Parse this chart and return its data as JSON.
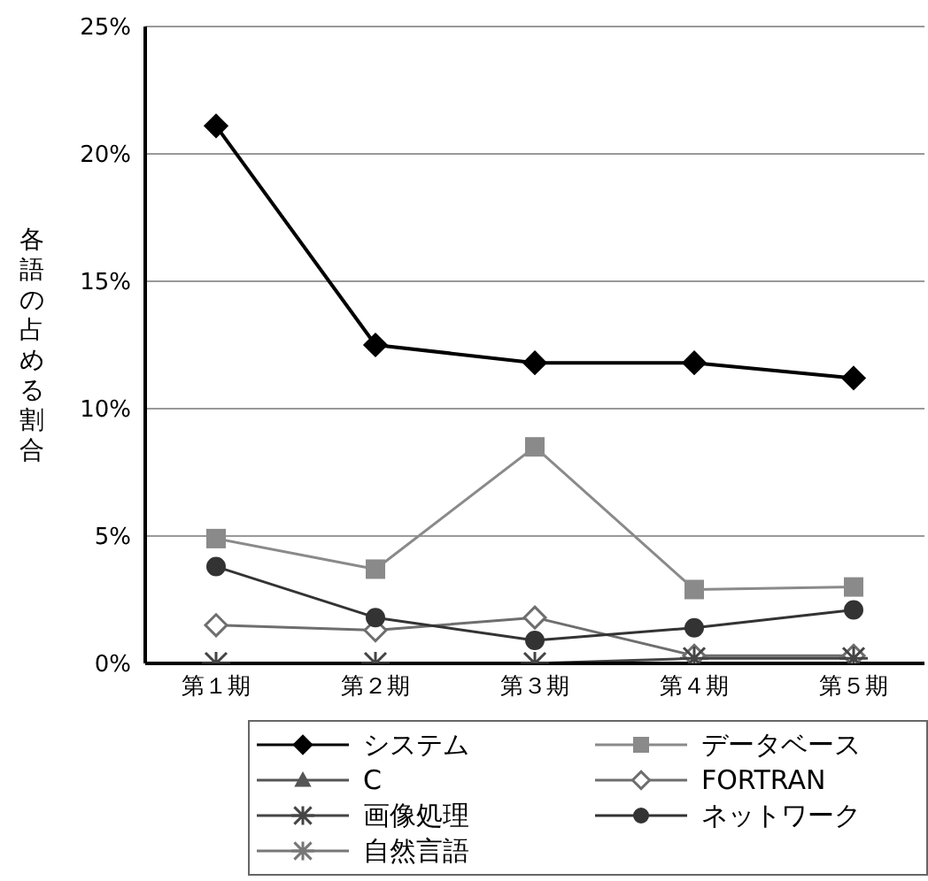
{
  "chart_data": {
    "type": "line",
    "ylabel": "各語の占める割合",
    "categories": [
      "第１期",
      "第２期",
      "第３期",
      "第４期",
      "第５期"
    ],
    "ylim": [
      0,
      25
    ],
    "yticks": [
      {
        "value": 0,
        "label": "0%"
      },
      {
        "value": 5,
        "label": "5%"
      },
      {
        "value": 10,
        "label": "10%"
      },
      {
        "value": 15,
        "label": "15%"
      },
      {
        "value": 20,
        "label": "20%"
      },
      {
        "value": 25,
        "label": "25%"
      }
    ],
    "grid": "y",
    "legend": "bottom",
    "series": [
      {
        "name": "システム",
        "color": "#000000",
        "marker": "diamond",
        "values": [
          21.1,
          12.5,
          11.8,
          11.8,
          11.2
        ]
      },
      {
        "name": "データベース",
        "color": "#8a8a8a",
        "marker": "square",
        "values": [
          4.9,
          3.7,
          8.5,
          2.9,
          3.0
        ]
      },
      {
        "name": "C",
        "color": "#555555",
        "marker": "triangle",
        "values": [
          null,
          null,
          null,
          null,
          null
        ]
      },
      {
        "name": "FORTRAN",
        "color": "#6e6e6e",
        "marker": "diamond",
        "values": [
          1.5,
          1.3,
          1.8,
          0.3,
          0.3
        ]
      },
      {
        "name": "画像処理",
        "color": "#444444",
        "marker": "cross",
        "values": [
          0,
          0,
          0,
          0.2,
          0.2
        ]
      },
      {
        "name": "ネットワーク",
        "color": "#333333",
        "marker": "circle",
        "values": [
          3.8,
          1.8,
          0.9,
          1.4,
          2.1
        ]
      },
      {
        "name": "自然言語",
        "color": "#777777",
        "marker": "cross",
        "values": [
          null,
          null,
          null,
          null,
          null
        ]
      }
    ]
  }
}
